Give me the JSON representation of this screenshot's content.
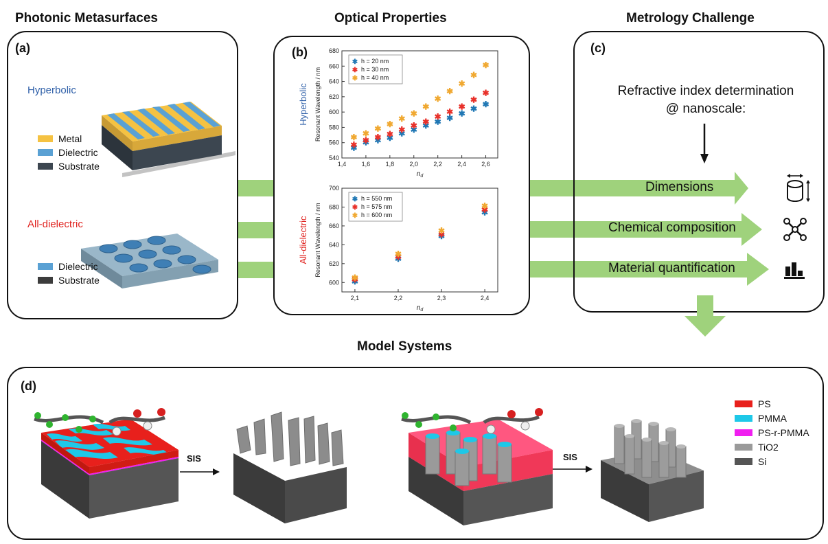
{
  "headers": {
    "photonic": "Photonic Metasurfaces",
    "optical": "Optical Properties",
    "metrology": "Metrology Challenge",
    "model": "Model Systems"
  },
  "panel_a": {
    "label": "(a)",
    "hyperbolic_title": "Hyperbolic",
    "hyperbolic_legend": [
      "Metal",
      "Dielectric",
      "Substrate"
    ],
    "dielectric_title": "All-dielectric",
    "dielectric_legend": [
      "Dielectric",
      "Substrate"
    ],
    "colors": {
      "metal": "#f5c242",
      "dielectric": "#5aa1d4",
      "substrate": "#3c4650",
      "hyperbolic_title": "#2e5fa8",
      "dielectric_title": "#e0231f"
    }
  },
  "panel_b": {
    "label": "(b)"
  },
  "panel_c": {
    "label": "(c)",
    "statement_line1": "Refractive index determination",
    "statement_line2": "@ nanoscale:",
    "items": [
      "Dimensions",
      "Chemical composition",
      "Material quantification"
    ],
    "icons": [
      "cylinder-dimension-icon",
      "molecule-network-icon",
      "bar-chart-icon"
    ],
    "arrow_color": "#9fd27c"
  },
  "panel_d": {
    "label": "(d)",
    "sis_label_1": "SIS",
    "sis_label_2": "SIS",
    "legend": [
      {
        "label": "PS",
        "color": "#e8201c"
      },
      {
        "label": "PMMA",
        "color": "#1ec8e8"
      },
      {
        "label": "PS-r-PMMA",
        "color": "#f01ef0"
      },
      {
        "label": "TiO2",
        "color": "#9a9a9a"
      },
      {
        "label": "Si",
        "color": "#555555"
      }
    ]
  },
  "chart_data": [
    {
      "type": "scatter",
      "ylabel": "Resonant Wavelength / nm",
      "side_label": "Hyperbolic",
      "xlabel": "n_d",
      "xlim": [
        1.4,
        2.7
      ],
      "ylim": [
        540,
        680
      ],
      "xticks": [
        "1,4",
        "1,6",
        "1,8",
        "2,0",
        "2,2",
        "2,4",
        "2,6"
      ],
      "yticks": [
        "540",
        "560",
        "580",
        "600",
        "620",
        "640",
        "660",
        "680"
      ],
      "x": [
        1.5,
        1.6,
        1.7,
        1.8,
        1.9,
        2.0,
        2.1,
        2.2,
        2.3,
        2.4,
        2.5,
        2.6
      ],
      "series": [
        {
          "name": "h = 20 nm",
          "color": "#1f77b4",
          "values": [
            553,
            560,
            563,
            566,
            572,
            577,
            582,
            587,
            592,
            598,
            604,
            610
          ]
        },
        {
          "name": "h = 30 nm",
          "color": "#e8312a",
          "values": [
            557,
            563,
            567,
            571,
            577,
            582,
            587,
            594,
            600,
            607,
            616,
            625
          ]
        },
        {
          "name": "h = 40 nm",
          "color": "#f0a830",
          "values": [
            567,
            572,
            578,
            584,
            591,
            598,
            607,
            617,
            627,
            637,
            648,
            661
          ]
        }
      ]
    },
    {
      "type": "scatter",
      "ylabel": "Resonant Wavelength / nm",
      "side_label": "All-dielectric",
      "xlabel": "n_d",
      "xlim": [
        2.07,
        2.43
      ],
      "ylim": [
        590,
        700
      ],
      "xticks": [
        "2,1",
        "2,2",
        "2,3",
        "2,4"
      ],
      "yticks": [
        "600",
        "620",
        "640",
        "660",
        "680",
        "700"
      ],
      "x": [
        2.1,
        2.2,
        2.3,
        2.4
      ],
      "series": [
        {
          "name": "h = 550 nm",
          "color": "#1f77b4",
          "values": [
            601,
            625,
            649,
            674
          ]
        },
        {
          "name": "h = 575 nm",
          "color": "#e8312a",
          "values": [
            603,
            627,
            651,
            677
          ]
        },
        {
          "name": "h = 600 nm",
          "color": "#f0a830",
          "values": [
            605,
            630,
            655,
            681
          ]
        }
      ]
    }
  ]
}
